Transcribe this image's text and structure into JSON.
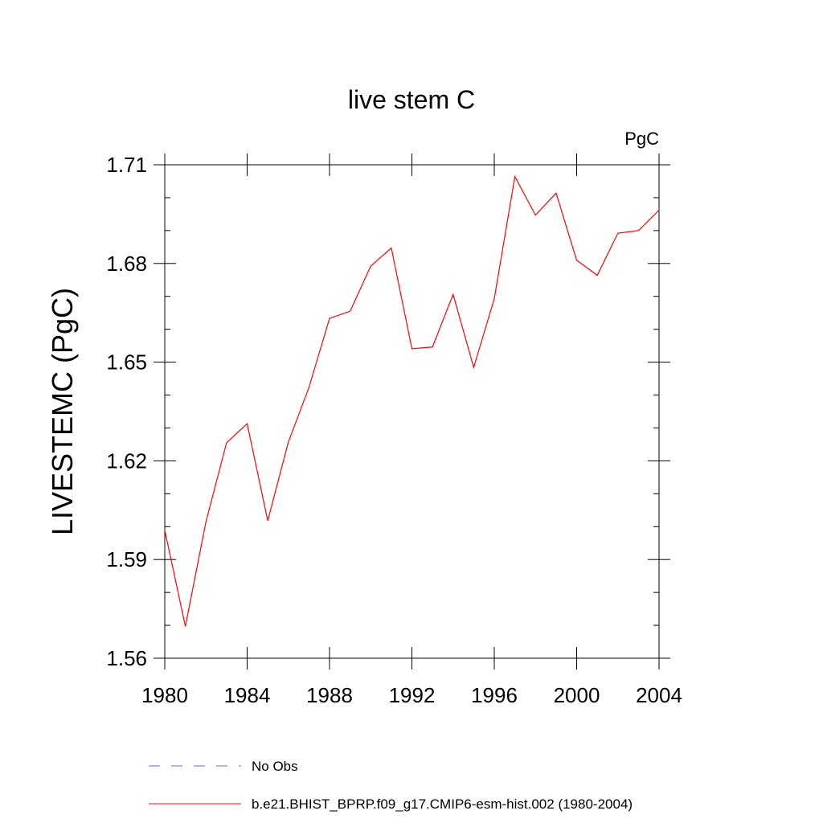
{
  "chart_data": {
    "type": "line",
    "title": "live stem C",
    "units_label": "PgC",
    "xlabel": "",
    "ylabel": "LIVESTEMC  (PgC)",
    "xlim": [
      1980,
      2004
    ],
    "ylim": [
      1.56,
      1.71
    ],
    "x_ticks": [
      1980,
      1984,
      1988,
      1992,
      1996,
      2000,
      2004
    ],
    "x_tick_labels": [
      "1980",
      "1984",
      "1988",
      "1992",
      "1996",
      "2000",
      "2004"
    ],
    "y_ticks": [
      1.56,
      1.59,
      1.62,
      1.65,
      1.68,
      1.71
    ],
    "y_tick_labels": [
      "1.56",
      "1.59",
      "1.62",
      "1.65",
      "1.68",
      "1.71"
    ],
    "grid": false,
    "legend_position": "bottom",
    "series": [
      {
        "name": "b.e21.BHIST_BPRP.f09_g17.CMIP6-esm-hist.002 (1980-2004)",
        "color": "#ff0000",
        "style": "solid",
        "x": [
          1980,
          1981,
          1982,
          1983,
          1984,
          1985,
          1986,
          1987,
          1988,
          1989,
          1990,
          1991,
          1992,
          1993,
          1994,
          1995,
          1996,
          1997,
          1998,
          1999,
          2000,
          2001,
          2002,
          2003,
          2004
        ],
        "y": [
          1.5989,
          1.5697,
          1.6015,
          1.6255,
          1.6313,
          1.6018,
          1.6257,
          1.6423,
          1.6633,
          1.6655,
          1.6792,
          1.6847,
          1.6541,
          1.6546,
          1.6706,
          1.6484,
          1.6693,
          1.7064,
          1.6947,
          1.7014,
          1.681,
          1.6764,
          1.6892,
          1.69,
          1.6962
        ]
      }
    ],
    "legend": [
      {
        "label": "No Obs",
        "color": "#6666cc",
        "style": "dashed"
      },
      {
        "label": "b.e21.BHIST_BPRP.f09_g17.CMIP6-esm-hist.002 (1980-2004)",
        "color": "#ff0000",
        "style": "solid"
      }
    ]
  }
}
